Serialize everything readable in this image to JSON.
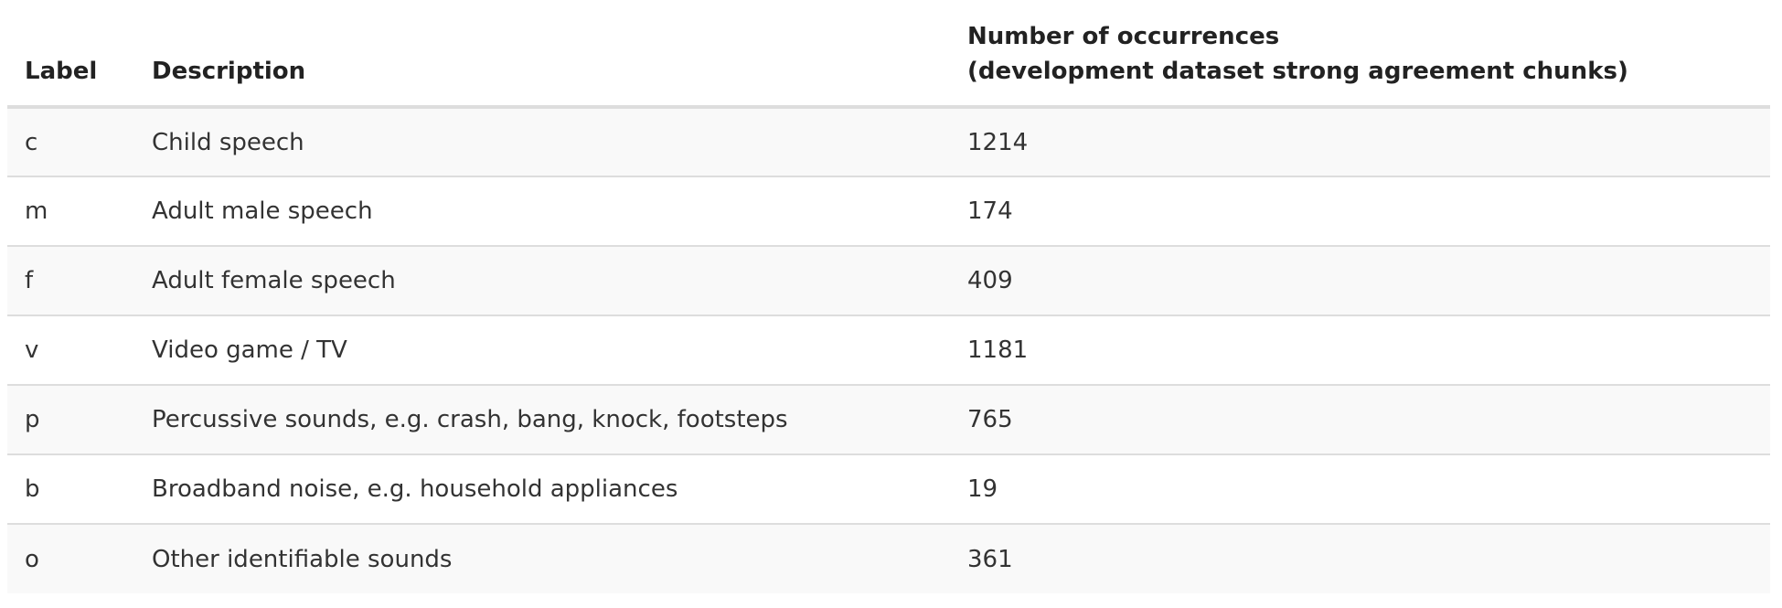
{
  "table": {
    "headers": {
      "label": "Label",
      "description": "Description",
      "count_line1": "Number of occurrences",
      "count_line2": "(development dataset strong agreement chunks)"
    },
    "rows": [
      {
        "label": "c",
        "description": "Child speech",
        "count": "1214"
      },
      {
        "label": "m",
        "description": "Adult male speech",
        "count": "174"
      },
      {
        "label": "f",
        "description": "Adult female speech",
        "count": "409"
      },
      {
        "label": "v",
        "description": "Video game / TV",
        "count": "1181"
      },
      {
        "label": "p",
        "description": "Percussive sounds, e.g. crash, bang, knock, footsteps",
        "count": "765"
      },
      {
        "label": "b",
        "description": "Broadband noise, e.g. household appliances",
        "count": "19"
      },
      {
        "label": "o",
        "description": "Other identifiable sounds",
        "count": "361"
      }
    ],
    "colors": {
      "header_rule": "#dddddd",
      "row_rule": "#dddddd",
      "stripe": "#f9f9f9",
      "text": "#333333"
    }
  }
}
